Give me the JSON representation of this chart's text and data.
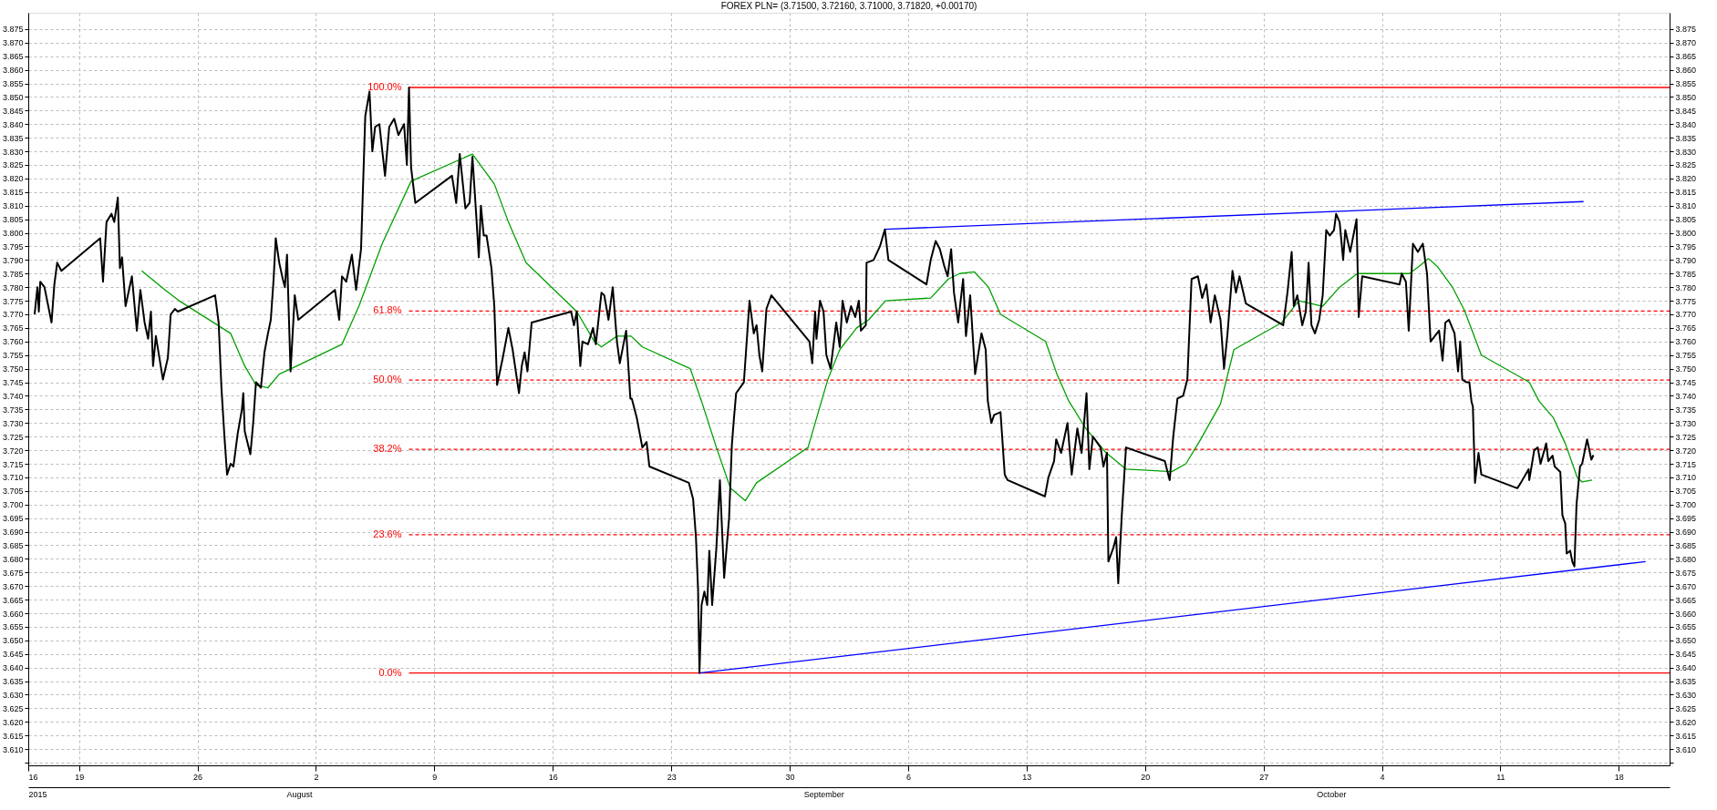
{
  "chart_data": {
    "type": "line",
    "title": "FOREX PLN= (3.71500, 3.72160, 3.71000, 3.71820, +0.00170)",
    "grid": true,
    "xlim": [
      "2015-07-16",
      "2015-10-21"
    ],
    "xticks": [
      {
        "value": "2015-07-16",
        "label": "16"
      },
      {
        "value": "2015-07-19",
        "label": "19"
      },
      {
        "value": "2015-07-26",
        "label": "26"
      },
      {
        "value": "2015-08-02",
        "label": "2"
      },
      {
        "value": "2015-08-09",
        "label": "9"
      },
      {
        "value": "2015-08-16",
        "label": "16"
      },
      {
        "value": "2015-08-23",
        "label": "23"
      },
      {
        "value": "2015-08-30",
        "label": "30"
      },
      {
        "value": "2015-09-06",
        "label": "6"
      },
      {
        "value": "2015-09-13",
        "label": "13"
      },
      {
        "value": "2015-09-20",
        "label": "20"
      },
      {
        "value": "2015-09-27",
        "label": "27"
      },
      {
        "value": "2015-10-04",
        "label": "4"
      },
      {
        "value": "2015-10-11",
        "label": "11"
      },
      {
        "value": "2015-10-18",
        "label": "18"
      }
    ],
    "x2lim": [
      "2015-07-16",
      "2015-10-21"
    ],
    "x2ticks": [
      {
        "value": "2015-07-16",
        "label": "2015"
      },
      {
        "value": "2015-08-01",
        "label": "August"
      },
      {
        "value": "2015-09-01",
        "label": "September"
      },
      {
        "value": "2015-10-01",
        "label": "October"
      }
    ],
    "ylim": [
      3.604,
      3.881
    ],
    "yticks": [
      {
        "value": 3.605,
        "label": null
      },
      {
        "value": 3.61,
        "label": "3.610"
      },
      3.615,
      {
        "value": 3.62,
        "label": "3.620"
      },
      3.625,
      {
        "value": 3.63,
        "label": "3.630"
      },
      3.635,
      {
        "value": 3.64,
        "label": "3.640"
      },
      3.645,
      {
        "value": 3.65,
        "label": "3.650"
      },
      3.655,
      {
        "value": 3.66,
        "label": "3.660"
      },
      3.665,
      {
        "value": 3.67,
        "label": "3.670"
      },
      3.675,
      {
        "value": 3.68,
        "label": "3.680"
      },
      3.685,
      {
        "value": 3.69,
        "label": "3.690"
      },
      3.695,
      {
        "value": 3.7,
        "label": "3.700"
      },
      3.705,
      {
        "value": 3.71,
        "label": "3.710"
      },
      3.715,
      {
        "value": 3.72,
        "label": "3.720"
      },
      3.725,
      {
        "value": 3.73,
        "label": "3.730"
      },
      3.735,
      {
        "value": 3.74,
        "label": "3.740"
      },
      3.745,
      {
        "value": 3.75,
        "label": "3.750"
      },
      3.755,
      {
        "value": 3.76,
        "label": "3.760"
      },
      3.765,
      {
        "value": 3.77,
        "label": "3.770"
      },
      3.775,
      {
        "value": 3.78,
        "label": "3.780"
      },
      3.785,
      {
        "value": 3.79,
        "label": "3.790"
      },
      3.795,
      {
        "value": 3.8,
        "label": "3.800"
      },
      3.805,
      {
        "value": 3.81,
        "label": "3.810"
      },
      3.815,
      {
        "value": 3.82,
        "label": "3.820"
      },
      3.825,
      {
        "value": 3.83,
        "label": "3.830"
      },
      3.835,
      {
        "value": 3.84,
        "label": "3.840"
      },
      3.845,
      {
        "value": 3.85,
        "label": "3.850"
      },
      3.855,
      {
        "value": 3.86,
        "label": "3.860"
      },
      3.865,
      {
        "value": 3.87,
        "label": "3.870"
      },
      3.875
    ],
    "y2lim": [
      3.604,
      3.881
    ],
    "y2ticks": [
      {
        "value": 3.605,
        "label": null
      },
      {
        "value": 3.61,
        "label": "3.610"
      },
      3.615,
      {
        "value": 3.62,
        "label": "3.620"
      },
      3.625,
      {
        "value": 3.63,
        "label": "3.630"
      },
      3.635,
      {
        "value": 3.64,
        "label": "3.640"
      },
      3.645,
      {
        "value": 3.65,
        "label": "3.650"
      },
      3.655,
      {
        "value": 3.66,
        "label": "3.660"
      },
      3.665,
      {
        "value": 3.67,
        "label": "3.670"
      },
      3.675,
      {
        "value": 3.68,
        "label": "3.680"
      },
      3.685,
      {
        "value": 3.69,
        "label": "3.690"
      },
      3.695,
      {
        "value": 3.7,
        "label": "3.700"
      },
      3.705,
      {
        "value": 3.71,
        "label": "3.710"
      },
      3.715,
      {
        "value": 3.72,
        "label": "3.720"
      },
      3.725,
      {
        "value": 3.73,
        "label": "3.730"
      },
      3.735,
      {
        "value": 3.74,
        "label": "3.740"
      },
      3.745,
      {
        "value": 3.75,
        "label": "3.750"
      },
      3.755,
      {
        "value": 3.76,
        "label": "3.760"
      },
      3.765,
      {
        "value": 3.77,
        "label": "3.770"
      },
      3.775,
      {
        "value": 3.78,
        "label": "3.780"
      },
      3.785,
      {
        "value": 3.79,
        "label": "3.790"
      },
      3.795,
      {
        "value": 3.8,
        "label": "3.800"
      },
      3.805,
      {
        "value": 3.81,
        "label": "3.810"
      },
      3.815,
      {
        "value": 3.82,
        "label": "3.820"
      },
      3.825,
      {
        "value": 3.83,
        "label": "3.830"
      },
      3.835,
      {
        "value": 3.84,
        "label": "3.840"
      },
      3.845,
      {
        "value": 3.85,
        "label": "3.850"
      },
      3.855,
      {
        "value": 3.86,
        "label": "3.860"
      },
      3.865,
      {
        "value": 3.87,
        "label": "3.870"
      },
      3.875
    ],
    "series": [
      {
        "color": "#ff0000",
        "line_style": "solid",
        "name": "100.0%",
        "x": [
          "2015-08-07T12:00",
          "2015-10-21T00:00"
        ],
        "values": [
          3.8535,
          3.8535
        ]
      },
      {
        "color": "#ff0000",
        "line_style": "dashed",
        "name": "61.8%",
        "x": [
          "2015-08-07T12:00",
          "2015-10-21T00:00"
        ],
        "values": [
          3.7712,
          3.7712
        ]
      },
      {
        "color": "#ff0000",
        "line_style": "dashed",
        "name": "50.0%",
        "x": [
          "2015-08-07T12:00",
          "2015-10-21T00:00"
        ],
        "values": [
          3.7458,
          3.7458
        ]
      },
      {
        "color": "#ff0000",
        "line_style": "dashed",
        "name": "38.2%",
        "x": [
          "2015-08-07T12:00",
          "2015-10-21T00:00"
        ],
        "values": [
          3.7203,
          3.7203
        ]
      },
      {
        "color": "#ff0000",
        "line_style": "dashed",
        "name": "23.6%",
        "x": [
          "2015-08-07T12:00",
          "2015-10-21T00:00"
        ],
        "values": [
          3.6889,
          3.6889
        ]
      },
      {
        "color": "#ff0000",
        "line_style": "solid",
        "name": "0.0%",
        "x": [
          "2015-08-07T12:00",
          "2015-10-21T00:00"
        ],
        "values": [
          3.638,
          3.638
        ]
      },
      {
        "color": "#0000ff",
        "line_style": "solid",
        "x": [
          "2015-08-24T16:00",
          "2015-10-19T14:00"
        ],
        "values": [
          3.638,
          3.679
        ]
      },
      {
        "color": "#0000ff",
        "line_style": "solid",
        "x": [
          "2015-09-04T15:00",
          "2015-10-15T22:00"
        ],
        "values": [
          3.8013,
          3.8115
        ]
      },
      {
        "color": "#00a000",
        "line_style": "solid",
        "x": [
          "2015-07-22T17:00",
          "2015-07-24T02:00",
          "2015-07-24T22:00",
          "2015-07-27T23:00",
          "2015-07-28T19:00",
          "2015-07-29T11:00",
          "2015-07-30T04:00",
          "2015-07-30T20:00",
          "2015-07-31T21:00",
          "2015-08-03T13:00",
          "2015-08-04T13:00",
          "2015-08-05T22:00",
          "2015-08-07T15:00",
          "2015-08-11T06:00",
          "2015-08-12T13:00",
          "2015-08-13T09:00",
          "2015-08-14T10:00",
          "2015-08-17T10:00",
          "2015-08-18T11:00",
          "2015-08-18T21:00",
          "2015-08-19T19:00",
          "2015-08-20T15:00",
          "2015-08-21T07:00",
          "2015-08-24T03:00",
          "2015-08-24T19:00",
          "2015-08-25T16:00",
          "2015-08-26T12:00",
          "2015-08-27T09:00",
          "2015-08-28T01:00",
          "2015-08-31T02:00",
          "2015-09-01T06:00",
          "2015-09-01T23:00",
          "2015-09-02T23:00",
          "2015-09-03T16:00",
          "2015-09-04T16:00",
          "2015-09-07T08:00",
          "2015-09-08T09:00",
          "2015-09-09T01:00",
          "2015-09-09T22:00",
          "2015-09-10T18:00",
          "2015-09-11T11:00",
          "2015-09-14T03:00",
          "2015-09-14T19:00",
          "2015-09-15T12:00",
          "2015-09-16T12:00",
          "2015-09-17T17:00",
          "2015-09-18T21:00",
          "2015-09-21T14:00",
          "2015-09-22T10:00",
          "2015-09-23T07:00",
          "2015-09-24T11:00",
          "2015-09-25T06:00",
          "2015-09-28T02:00",
          "2015-09-29T02:00",
          "2015-09-29T19:00",
          "2015-09-30T12:00",
          "2015-10-01T12:00",
          "2015-10-02T13:00",
          "2015-10-05T15:00",
          "2015-10-06T04:00",
          "2015-10-06T18:00",
          "2015-10-07T07:00",
          "2015-10-08T04:00",
          "2015-10-08T21:00",
          "2015-10-09T21:00",
          "2015-10-12T17:00",
          "2015-10-13T07:00",
          "2015-10-14T03:00",
          "2015-10-14T20:00",
          "2015-10-15T13:00",
          "2015-10-15T20:00",
          "2015-10-16T10:00"
        ],
        "values": [
          3.786,
          3.779,
          3.775,
          3.763,
          3.751,
          3.744,
          3.743,
          3.748,
          3.751,
          3.759,
          3.773,
          3.796,
          3.819,
          3.829,
          3.818,
          3.804,
          3.789,
          3.771,
          3.76,
          3.758,
          3.762,
          3.762,
          3.758,
          3.75,
          3.738,
          3.721,
          3.706,
          3.7014,
          3.708,
          3.721,
          3.746,
          3.757,
          3.765,
          3.768,
          3.775,
          3.776,
          3.783,
          3.785,
          3.7856,
          3.78,
          3.77,
          3.76,
          3.748,
          3.738,
          3.728,
          3.719,
          3.713,
          3.7121,
          3.715,
          3.724,
          3.737,
          3.757,
          3.767,
          3.775,
          3.774,
          3.773,
          3.78,
          3.785,
          3.785,
          3.7875,
          3.7905,
          3.7875,
          3.78,
          3.7715,
          3.755,
          3.745,
          3.738,
          3.732,
          3.7225,
          3.71,
          3.7083,
          3.709
        ]
      },
      {
        "color": "#000000",
        "line_style": "solid",
        "x": [
          "2015-07-16T09:00",
          "2015-07-16T13:00",
          "2015-07-16T15:00",
          "2015-07-16T17:00",
          "2015-07-16T23:00",
          "2015-07-17T09:00",
          "2015-07-17T13:00",
          "2015-07-17T17:00",
          "2015-07-17T23:00",
          "2015-07-20T06:00",
          "2015-07-20T10:00",
          "2015-07-20T15:00",
          "2015-07-20T22:00",
          "2015-07-21T02:00",
          "2015-07-21T07:00",
          "2015-07-21T10:00",
          "2015-07-21T13:00",
          "2015-07-21T18:00",
          "2015-07-22T03:00",
          "2015-07-22T10:00",
          "2015-07-22T15:00",
          "2015-07-22T21:00",
          "2015-07-23T02:00",
          "2015-07-23T06:00",
          "2015-07-23T09:00",
          "2015-07-23T13:00",
          "2015-07-23T23:00",
          "2015-07-24T06:00",
          "2015-07-24T10:00",
          "2015-07-24T16:00",
          "2015-07-24T20:00",
          "2015-07-27T01:00",
          "2015-07-27T06:00",
          "2015-07-27T10:00",
          "2015-07-27T14:00",
          "2015-07-27T18:00",
          "2015-07-27T23:00",
          "2015-07-28T03:00",
          "2015-07-28T09:00",
          "2015-07-28T15:00",
          "2015-07-28T17:00",
          "2015-07-28T19:00",
          "2015-07-29T03:00",
          "2015-07-29T07:00",
          "2015-07-29T11:00",
          "2015-07-29T18:00",
          "2015-07-29T23:00",
          "2015-07-30T04:00",
          "2015-07-30T08:00",
          "2015-07-30T12:00",
          "2015-07-30T15:00",
          "2015-07-30T20:00",
          "2015-07-31T01:00",
          "2015-07-31T04:00",
          "2015-07-31T07:00",
          "2015-07-31T12:00",
          "2015-07-31T18:00",
          "2015-07-31T23:00",
          "2015-08-03T03:00",
          "2015-08-03T09:00",
          "2015-08-03T13:00",
          "2015-08-03T19:00",
          "2015-08-04T03:00",
          "2015-08-04T09:00",
          "2015-08-04T16:00",
          "2015-08-04T22:00",
          "2015-08-05T04:00",
          "2015-08-05T08:00",
          "2015-08-05T12:00",
          "2015-08-05T18:00",
          "2015-08-06T02:00",
          "2015-08-06T08:00",
          "2015-08-06T15:00",
          "2015-08-06T21:00",
          "2015-08-07T05:00",
          "2015-08-07T09:00",
          "2015-08-07T12:00",
          "2015-08-07T15:00",
          "2015-08-07T21:00",
          "2015-08-10T01:00",
          "2015-08-10T07:00",
          "2015-08-10T12:00",
          "2015-08-10T20:00",
          "2015-08-11T02:00",
          "2015-08-11T06:00",
          "2015-08-11T11:00",
          "2015-08-11T15:00",
          "2015-08-11T18:00",
          "2015-08-11T22:00",
          "2015-08-12T02:00",
          "2015-08-12T09:00",
          "2015-08-12T13:00",
          "2015-08-12T17:00",
          "2015-08-13T01:00",
          "2015-08-13T09:00",
          "2015-08-13T15:00",
          "2015-08-14T00:00",
          "2015-08-14T04:00",
          "2015-08-14T08:00",
          "2015-08-14T12:00",
          "2015-08-14T18:00",
          "2015-08-17T02:00",
          "2015-08-17T06:00",
          "2015-08-17T10:00",
          "2015-08-17T15:00",
          "2015-08-17T18:00",
          "2015-08-18T02:00",
          "2015-08-18T09:00",
          "2015-08-18T13:00",
          "2015-08-18T21:00",
          "2015-08-19T01:00",
          "2015-08-19T07:00",
          "2015-08-19T13:00",
          "2015-08-19T19:00",
          "2015-08-19T23:00",
          "2015-08-20T08:00",
          "2015-08-20T14:00",
          "2015-08-20T16:00",
          "2015-08-20T23:00",
          "2015-08-21T07:00",
          "2015-08-21T13:00",
          "2015-08-21T17:00",
          "2015-08-24T01:00",
          "2015-08-24T07:00",
          "2015-08-24T11:00",
          "2015-08-24T14:00",
          "2015-08-24T16:00",
          "2015-08-24T19:00",
          "2015-08-24T23:00",
          "2015-08-25T03:00",
          "2015-08-25T06:00",
          "2015-08-25T10:00",
          "2015-08-25T16:00",
          "2015-08-25T21:00",
          "2015-08-26T03:00",
          "2015-08-26T10:00",
          "2015-08-26T14:00",
          "2015-08-26T17:00",
          "2015-08-26T20:00",
          "2015-08-27T07:00",
          "2015-08-27T15:00",
          "2015-08-27T21:00",
          "2015-08-28T01:00",
          "2015-08-28T05:00",
          "2015-08-28T09:00",
          "2015-08-28T15:00",
          "2015-08-28T22:00",
          "2015-08-31T04:00",
          "2015-08-31T08:00",
          "2015-08-31T12:00",
          "2015-08-31T14:00",
          "2015-08-31T19:00",
          "2015-09-01T00:00",
          "2015-09-01T04:00",
          "2015-09-01T10:00",
          "2015-09-01T18:00",
          "2015-09-01T23:00",
          "2015-09-02T03:00",
          "2015-09-02T09:00",
          "2015-09-02T15:00",
          "2015-09-02T21:00",
          "2015-09-03T02:00",
          "2015-09-03T05:00",
          "2015-09-03T12:00",
          "2015-09-03T13:00",
          "2015-09-03T23:00",
          "2015-09-04T08:00",
          "2015-09-04T15:00",
          "2015-09-04T20:00",
          "2015-09-07T02:00",
          "2015-09-07T08:00",
          "2015-09-07T15:00",
          "2015-09-07T21:00",
          "2015-09-08T03:00",
          "2015-09-08T08:00",
          "2015-09-08T13:00",
          "2015-09-08T17:00",
          "2015-09-08T23:00",
          "2015-09-09T06:00",
          "2015-09-09T10:00",
          "2015-09-09T16:00",
          "2015-09-09T23:00",
          "2015-09-10T08:00",
          "2015-09-10T14:00",
          "2015-09-10T17:00",
          "2015-09-10T22:00",
          "2015-09-11T02:00",
          "2015-09-11T11:00",
          "2015-09-11T17:00",
          "2015-09-11T21:00",
          "2015-09-14T02:00",
          "2015-09-14T07:00",
          "2015-09-14T15:00",
          "2015-09-14T18:00",
          "2015-09-15T01:00",
          "2015-09-15T10:00",
          "2015-09-15T16:00",
          "2015-09-16T00:00",
          "2015-09-16T06:00",
          "2015-09-16T13:00",
          "2015-09-16T17:00",
          "2015-09-16T22:00",
          "2015-09-17T09:00",
          "2015-09-17T13:00",
          "2015-09-17T18:00",
          "2015-09-17T20:00",
          "2015-09-18T03:00",
          "2015-09-18T07:00",
          "2015-09-18T10:00",
          "2015-09-18T15:00",
          "2015-09-18T21:00",
          "2015-09-21T04:00",
          "2015-09-21T11:00",
          "2015-09-21T16:00",
          "2015-09-21T22:00",
          "2015-09-22T06:00",
          "2015-09-22T12:00",
          "2015-09-22T18:00",
          "2015-09-23T03:00",
          "2015-09-23T09:00",
          "2015-09-23T15:00",
          "2015-09-23T21:00",
          "2015-09-24T03:00",
          "2015-09-24T11:00",
          "2015-09-24T16:00",
          "2015-09-24T21:00",
          "2015-09-25T04:00",
          "2015-09-25T09:00",
          "2015-09-25T14:00",
          "2015-09-25T23:00",
          "2015-09-28T04:00",
          "2015-09-28T10:00",
          "2015-09-28T16:00",
          "2015-09-28T19:00",
          "2015-09-29T00:00",
          "2015-09-29T07:00",
          "2015-09-29T12:00",
          "2015-09-29T16:00",
          "2015-09-29T20:00",
          "2015-09-30T01:00",
          "2015-09-30T07:00",
          "2015-09-30T12:00",
          "2015-09-30T17:00",
          "2015-09-30T22:00",
          "2015-10-01T04:00",
          "2015-10-01T07:00",
          "2015-10-01T12:00",
          "2015-10-01T17:00",
          "2015-10-01T20:00",
          "2015-10-02T03:00",
          "2015-10-02T12:00",
          "2015-10-02T15:00",
          "2015-10-02T20:00",
          "2015-10-05T01:00",
          "2015-10-05T04:00",
          "2015-10-05T10:00",
          "2015-10-05T14:00",
          "2015-10-05T20:00",
          "2015-10-06T03:00",
          "2015-10-06T10:00",
          "2015-10-06T16:00",
          "2015-10-06T21:00",
          "2015-10-07T09:00",
          "2015-10-07T14:00",
          "2015-10-07T18:00",
          "2015-10-07T23:00",
          "2015-10-08T07:00",
          "2015-10-08T12:00",
          "2015-10-08T15:00",
          "2015-10-08T18:00",
          "2015-10-09T00:00",
          "2015-10-09T04:00",
          "2015-10-09T07:00",
          "2015-10-09T09:00",
          "2015-10-09T12:00",
          "2015-10-09T17:00",
          "2015-10-09T21:00",
          "2015-10-12T00:00",
          "2015-10-12T05:00",
          "2015-10-12T16:00",
          "2015-10-12T17:00",
          "2015-10-13T00:00",
          "2015-10-13T05:00",
          "2015-10-13T09:00",
          "2015-10-13T17:00",
          "2015-10-13T20:00",
          "2015-10-14T02:00",
          "2015-10-14T05:00",
          "2015-10-14T13:00",
          "2015-10-14T16:00",
          "2015-10-14T20:00",
          "2015-10-14T22:00",
          "2015-10-15T03:00",
          "2015-10-15T06:00",
          "2015-10-15T09:00",
          "2015-10-15T12:00",
          "2015-10-15T17:00",
          "2015-10-15T20:00",
          "2015-10-16T03:00",
          "2015-10-16T09:00",
          "2015-10-16T12:00"
        ],
        "values": [
          3.77,
          3.78,
          3.771,
          3.782,
          3.78,
          3.767,
          3.781,
          3.789,
          3.786,
          3.798,
          3.782,
          3.804,
          3.807,
          3.804,
          3.813,
          3.787,
          3.791,
          3.773,
          3.784,
          3.764,
          3.779,
          3.767,
          3.761,
          3.771,
          3.751,
          3.762,
          3.746,
          3.754,
          3.77,
          3.772,
          3.771,
          3.777,
          3.767,
          3.743,
          3.726,
          3.711,
          3.715,
          3.714,
          3.726,
          3.735,
          3.741,
          3.727,
          3.7185,
          3.73,
          3.745,
          3.743,
          3.756,
          3.763,
          3.768,
          3.783,
          3.798,
          3.789,
          3.783,
          3.78,
          3.792,
          3.749,
          3.777,
          3.768,
          3.779,
          3.768,
          3.784,
          3.782,
          3.792,
          3.779,
          3.794,
          3.843,
          3.852,
          3.83,
          3.839,
          3.84,
          3.821,
          3.839,
          3.842,
          3.836,
          3.84,
          3.825,
          3.8535,
          3.824,
          3.811,
          3.821,
          3.811,
          3.829,
          3.809,
          3.811,
          3.828,
          3.808,
          3.791,
          3.81,
          3.799,
          3.799,
          3.787,
          3.773,
          3.744,
          3.754,
          3.765,
          3.757,
          3.741,
          3.751,
          3.756,
          3.749,
          3.767,
          3.771,
          3.766,
          3.771,
          3.751,
          3.76,
          3.759,
          3.765,
          3.759,
          3.778,
          3.777,
          3.768,
          3.78,
          3.76,
          3.752,
          3.764,
          3.739,
          3.739,
          3.732,
          3.721,
          3.723,
          3.714,
          3.708,
          3.702,
          3.688,
          3.669,
          3.638,
          3.663,
          3.668,
          3.663,
          3.683,
          3.663,
          3.684,
          3.709,
          3.673,
          3.695,
          3.722,
          3.732,
          3.741,
          3.745,
          3.775,
          3.763,
          3.766,
          3.755,
          3.749,
          3.772,
          3.777,
          3.76,
          3.752,
          3.771,
          3.761,
          3.775,
          3.771,
          3.755,
          3.75,
          3.767,
          3.758,
          3.775,
          3.767,
          3.773,
          3.769,
          3.775,
          3.764,
          3.766,
          3.789,
          3.79,
          3.795,
          3.8013,
          3.79,
          3.781,
          3.79,
          3.797,
          3.794,
          3.788,
          3.784,
          3.794,
          3.778,
          3.767,
          3.783,
          3.762,
          3.777,
          3.748,
          3.763,
          3.757,
          3.738,
          3.73,
          3.733,
          3.734,
          3.711,
          3.709,
          3.703,
          3.71,
          3.716,
          3.724,
          3.719,
          3.73,
          3.711,
          3.728,
          3.719,
          3.741,
          3.713,
          3.725,
          3.721,
          3.714,
          3.719,
          3.679,
          3.684,
          3.688,
          3.671,
          3.696,
          3.721,
          3.716,
          3.709,
          3.725,
          3.739,
          3.74,
          3.746,
          3.783,
          3.784,
          3.776,
          3.781,
          3.767,
          3.777,
          3.768,
          3.75,
          3.763,
          3.786,
          3.778,
          3.784,
          3.774,
          3.766,
          3.778,
          3.793,
          3.773,
          3.777,
          3.766,
          3.771,
          3.789,
          3.766,
          3.763,
          3.768,
          3.777,
          3.801,
          3.799,
          3.801,
          3.807,
          3.804,
          3.79,
          3.801,
          3.793,
          3.805,
          3.769,
          3.784,
          3.781,
          3.785,
          3.782,
          3.764,
          3.796,
          3.793,
          3.796,
          3.785,
          3.76,
          3.764,
          3.753,
          3.767,
          3.768,
          3.763,
          3.749,
          3.76,
          3.746,
          3.745,
          3.745,
          3.738,
          3.736,
          3.708,
          3.719,
          3.711,
          3.706,
          3.708,
          3.713,
          3.709,
          3.72,
          3.721,
          3.715,
          3.7225,
          3.716,
          3.718,
          3.714,
          3.712,
          3.696,
          3.693,
          3.682,
          3.683,
          3.679,
          3.6772,
          3.7,
          3.714,
          3.715,
          3.724,
          3.7165,
          3.7182
        ]
      }
    ]
  }
}
